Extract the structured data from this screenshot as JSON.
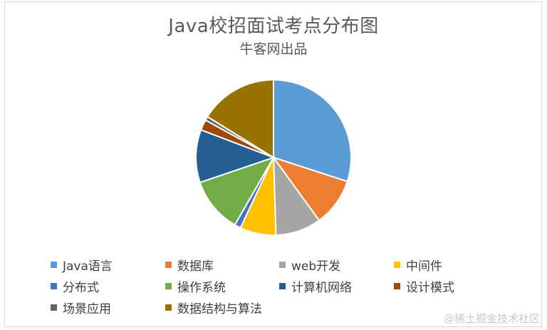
{
  "chart_data": {
    "type": "pie",
    "title": "Java校招面试考点分布图",
    "subtitle": "牛客网出品",
    "series": [
      {
        "name": "Java语言",
        "value": 30.0,
        "color": "#5B9BD5"
      },
      {
        "name": "数据库",
        "value": 10.0,
        "color": "#ED7D31"
      },
      {
        "name": "web开发",
        "value": 9.5,
        "color": "#A5A5A5"
      },
      {
        "name": "中间件",
        "value": 7.5,
        "color": "#FFC000"
      },
      {
        "name": "分布式",
        "value": 1.3,
        "color": "#4472C4"
      },
      {
        "name": "操作系统",
        "value": 11.5,
        "color": "#70AD47"
      },
      {
        "name": "计算机网络",
        "value": 11.0,
        "color": "#255E91"
      },
      {
        "name": "设计模式",
        "value": 2.2,
        "color": "#9E480E"
      },
      {
        "name": "场景应用",
        "value": 0.8,
        "color": "#636363"
      },
      {
        "name": "数据结构与算法",
        "value": 16.2,
        "color": "#997300"
      }
    ],
    "legend_position": "bottom"
  },
  "watermark": "@稀土掘金技术社区"
}
